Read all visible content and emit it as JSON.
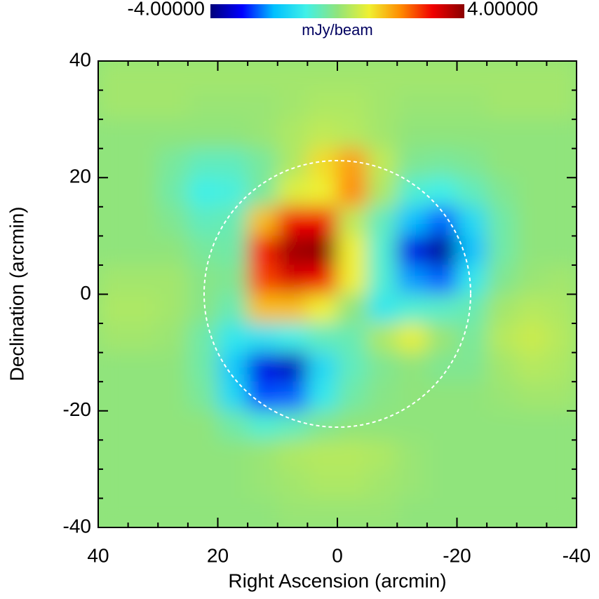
{
  "chart_data": {
    "type": "heatmap",
    "xlabel": "Right Ascension (arcmin)",
    "ylabel": "Declination (arcmin)",
    "colorbar_label": "mJy/beam",
    "clim": [
      -4,
      4
    ],
    "colorbar_ticks": [
      {
        "value": -4,
        "label": "-4.00000"
      },
      {
        "value": 4,
        "label": "4.00000"
      }
    ],
    "colormap": [
      "#00007a",
      "#0000ff",
      "#00c0ff",
      "#40f0e8",
      "#90e47c",
      "#f0f030",
      "#ff8a00",
      "#f00000",
      "#8a0000"
    ],
    "xlim": [
      40,
      -40
    ],
    "ylim": [
      -40,
      40
    ],
    "xticks": [
      40,
      20,
      0,
      -20,
      -40
    ],
    "yticks": [
      -40,
      -20,
      0,
      20,
      40
    ],
    "xminorticks": [
      35,
      30,
      25,
      15,
      10,
      5,
      -5,
      -10,
      -15,
      -25,
      -30,
      -35
    ],
    "yminorticks": [
      -35,
      -30,
      -25,
      -15,
      -10,
      -5,
      5,
      10,
      15,
      25,
      30,
      35
    ],
    "x": [
      37.5,
      32.5,
      27.5,
      22.5,
      17.5,
      12.5,
      7.5,
      2.5,
      -2.5,
      -7.5,
      -12.5,
      -17.5,
      -22.5,
      -27.5,
      -32.5,
      -37.5
    ],
    "y": [
      37.5,
      32.5,
      27.5,
      22.5,
      17.5,
      12.5,
      7.5,
      2.5,
      -2.5,
      -7.5,
      -12.5,
      -17.5,
      -22.5,
      -27.5,
      -32.5,
      -37.5
    ],
    "z": [
      [
        0.2,
        0.2,
        0.2,
        0.2,
        0.2,
        0.2,
        0.2,
        0.2,
        0.2,
        0.2,
        0.2,
        0.2,
        0.2,
        0.2,
        0.2,
        0.2
      ],
      [
        0.2,
        0.2,
        0.2,
        0.1,
        0.1,
        0.1,
        0.2,
        0.3,
        0.3,
        0.2,
        0.1,
        0.1,
        0.1,
        0.2,
        0.2,
        0.2
      ],
      [
        0,
        0,
        0,
        0,
        0,
        0.1,
        0.3,
        0.5,
        0.4,
        0.2,
        0,
        0,
        0,
        0,
        0,
        0
      ],
      [
        0,
        0,
        -0.3,
        -0.6,
        -0.6,
        -0.3,
        0.3,
        1.2,
        1.8,
        0.5,
        -0.2,
        -0.3,
        -0.2,
        0,
        0,
        0
      ],
      [
        0,
        0,
        -0.4,
        -1.0,
        -0.9,
        -0.3,
        0.8,
        1.0,
        2.0,
        0.3,
        -0.8,
        -1.0,
        -0.6,
        -0.2,
        0,
        0
      ],
      [
        0,
        0,
        -0.2,
        -0.6,
        -0.5,
        1.5,
        3.0,
        3.0,
        0.5,
        -0.6,
        -2.0,
        -2.5,
        -1.5,
        -0.4,
        0,
        0
      ],
      [
        0,
        0,
        0,
        -0.3,
        -0.4,
        2.8,
        3.8,
        4.0,
        1.0,
        -0.8,
        -3.2,
        -3.8,
        -2.0,
        -0.4,
        0,
        0
      ],
      [
        0.2,
        0.2,
        0.2,
        -0.1,
        -0.2,
        2.5,
        3.2,
        3.0,
        1.0,
        -0.8,
        -2.2,
        -2.5,
        -1.2,
        -0.2,
        0.1,
        0.2
      ],
      [
        0.3,
        0.3,
        0.2,
        -0.1,
        -0.5,
        1.5,
        1.5,
        1.0,
        0,
        -1.2,
        -0.8,
        -0.7,
        -0.5,
        0.2,
        0.4,
        0.3
      ],
      [
        0.2,
        0.2,
        0.1,
        -0.4,
        -1.2,
        -1.3,
        -1.0,
        -0.6,
        -0.5,
        0.3,
        0.9,
        0.1,
        -0.3,
        0.4,
        0.6,
        0.4
      ],
      [
        0,
        0,
        0,
        -0.4,
        -1.8,
        -3.2,
        -3.5,
        -1.5,
        -0.6,
        -0.2,
        0,
        -0.2,
        -0.2,
        0.2,
        0.4,
        0.3
      ],
      [
        0,
        0,
        0,
        -0.3,
        -1.5,
        -2.6,
        -2.5,
        -1.2,
        -0.4,
        -0.1,
        0,
        0,
        0,
        0.1,
        0.2,
        0.2
      ],
      [
        0,
        0,
        0,
        0,
        -0.4,
        -0.8,
        -0.6,
        -0.2,
        0,
        0,
        0,
        0,
        0,
        0,
        0,
        0
      ],
      [
        0,
        0,
        0,
        0,
        0,
        0.1,
        0.3,
        0.4,
        0.4,
        0.3,
        0.1,
        0,
        0,
        0,
        0,
        0
      ],
      [
        0,
        0,
        0,
        0,
        0,
        0.1,
        0.2,
        0.3,
        0.3,
        0.2,
        0.1,
        0,
        0,
        0,
        0,
        0
      ],
      [
        0,
        0,
        0,
        0,
        0,
        0,
        0.1,
        0.1,
        0.1,
        0.1,
        0,
        0,
        0,
        0,
        0,
        0
      ]
    ]
  }
}
